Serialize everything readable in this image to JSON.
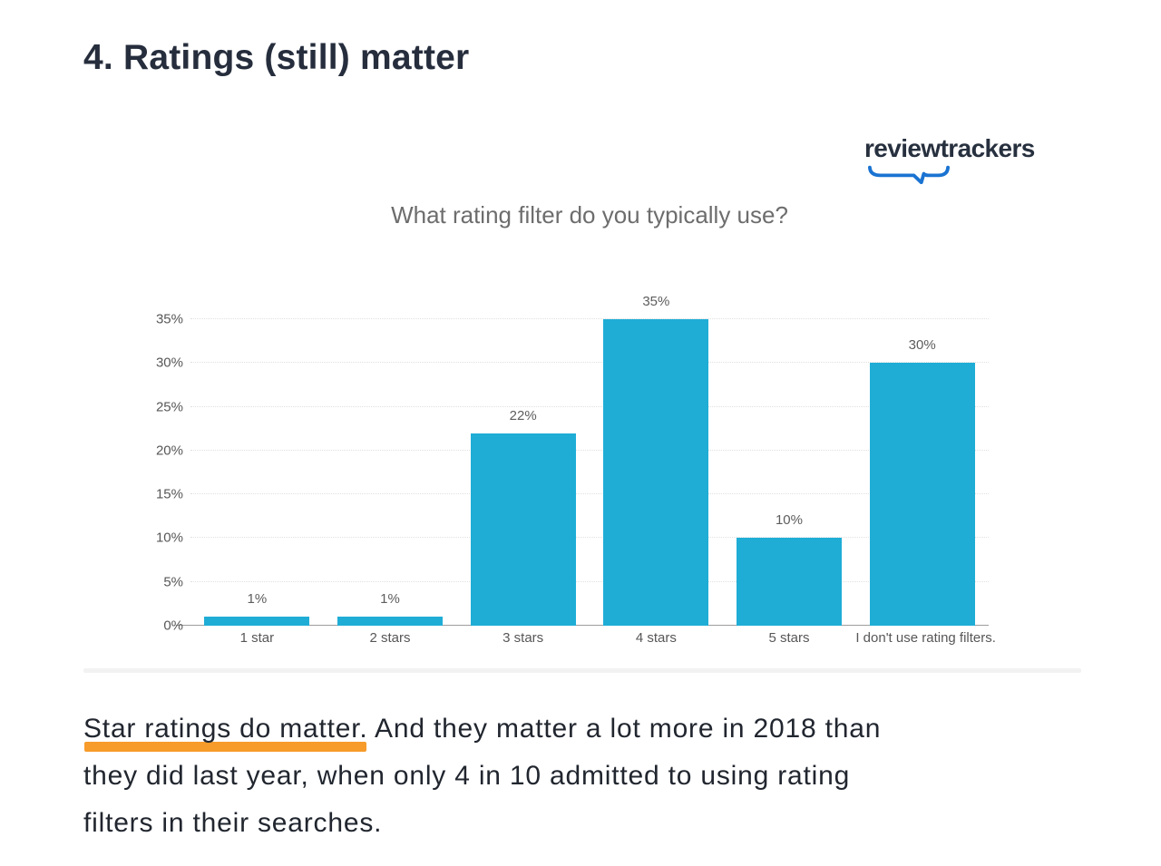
{
  "header": {
    "heading": "4. Ratings (still) matter"
  },
  "logo": {
    "text": "reviewtrackers",
    "swoosh_color": "#1a73d2",
    "text_color": "#27303e"
  },
  "chart_data": {
    "type": "bar",
    "title": "What rating filter do you typically use?",
    "categories": [
      "1 star",
      "2 stars",
      "3 stars",
      "4 stars",
      "5 stars",
      "I don't use rating filters."
    ],
    "values": [
      1,
      1,
      22,
      35,
      10,
      30
    ],
    "value_labels": [
      "1%",
      "1%",
      "22%",
      "35%",
      "10%",
      "30%"
    ],
    "xlabel": "",
    "ylabel": "",
    "ylim": [
      0,
      35
    ],
    "ytick_step": 5,
    "ytick_labels": [
      "0%",
      "5%",
      "10%",
      "15%",
      "20%",
      "25%",
      "30%",
      "35%"
    ],
    "grid": "horizontal-dotted",
    "legend": "none",
    "bar_color": "#1fadd6"
  },
  "body_text": {
    "highlight": "Star ratings do matter.",
    "line1_rest": " And they matter a lot more in 2018 than",
    "line2": "they did last year, when only 4 in 10 admitted to using rating",
    "line3": "filters in their searches.",
    "highlight_underline_color": "#f79b2b"
  }
}
